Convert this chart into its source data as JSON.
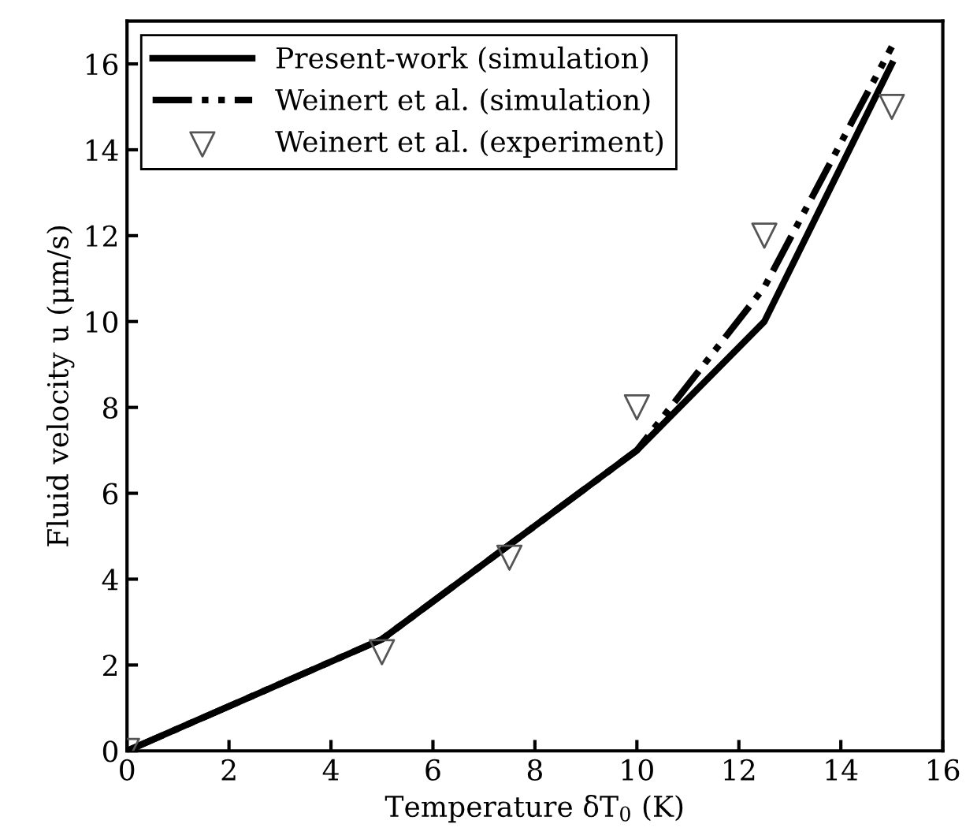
{
  "chart_data": {
    "type": "line",
    "xlabel": "Temperature δT$_{0}$ (K)",
    "ylabel": "Fluid velocity u (μm/s)",
    "xlim": [
      0,
      16
    ],
    "ylim": [
      0,
      17
    ],
    "xticks": [
      0,
      2,
      4,
      6,
      8,
      10,
      12,
      14,
      16
    ],
    "yticks": [
      0,
      2,
      4,
      6,
      8,
      10,
      12,
      14,
      16
    ],
    "grid": false,
    "legend": "top left",
    "series": [
      {
        "name": "Present-work (simulation)",
        "line_style": "solid",
        "color": "#000000",
        "x": [
          0,
          5,
          10,
          12.5,
          15
        ],
        "values": [
          0,
          2.6,
          7,
          10,
          16
        ]
      },
      {
        "name": "Weinert et al. (simulation)",
        "line_style": "dashdotdot",
        "color": "#000000",
        "x": [
          0,
          5,
          10,
          12.5,
          15
        ],
        "values": [
          0,
          2.6,
          7,
          10.8,
          16.4
        ]
      },
      {
        "name": "Weinert et al. (experiment)",
        "type": "scatter",
        "marker": "triangle",
        "color": "#555555",
        "x": [
          0,
          5,
          7.5,
          10,
          12.5,
          15
        ],
        "values": [
          0,
          2.3,
          4.5,
          8,
          12,
          15
        ]
      }
    ]
  }
}
